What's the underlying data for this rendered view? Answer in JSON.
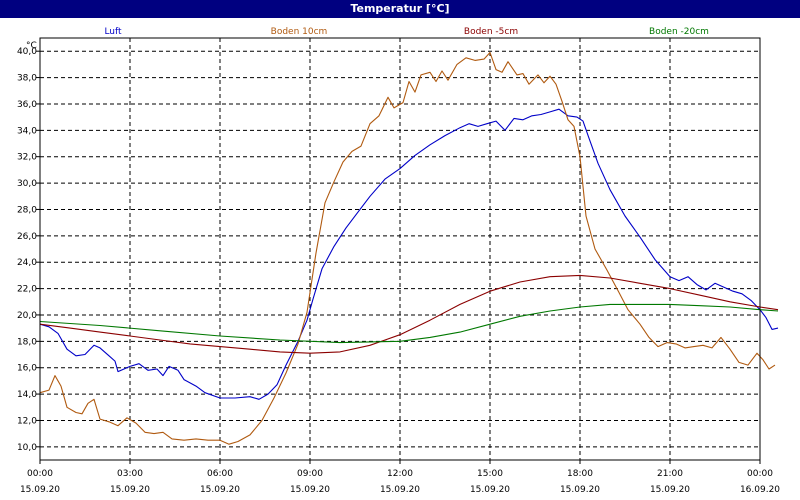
{
  "title": "Temperatur [°C]",
  "chart_data": {
    "type": "line",
    "ylabel": "°C",
    "ylim": [
      9.0,
      41.0
    ],
    "y_ticks": [
      "10,0",
      "12,0",
      "14,0",
      "16,0",
      "18,0",
      "20,0",
      "22,0",
      "24,0",
      "26,0",
      "28,0",
      "30,0",
      "32,0",
      "34,0",
      "36,0",
      "38,0",
      "40,0"
    ],
    "xlim": [
      0,
      24
    ],
    "x_ticks": [
      {
        "time": "00:00",
        "date": "15.09.20"
      },
      {
        "time": "03:00",
        "date": "15.09.20"
      },
      {
        "time": "06:00",
        "date": "15.09.20"
      },
      {
        "time": "09:00",
        "date": "15.09.20"
      },
      {
        "time": "12:00",
        "date": "15.09.20"
      },
      {
        "time": "15:00",
        "date": "15.09.20"
      },
      {
        "time": "18:00",
        "date": "15.09.20"
      },
      {
        "time": "21:00",
        "date": "15.09.20"
      },
      {
        "time": "00:00",
        "date": "16.09.20"
      }
    ],
    "grid": true,
    "legend_position": "top",
    "series": [
      {
        "name": "Luft",
        "color": "#0000c8",
        "points": [
          [
            0,
            19.3
          ],
          [
            0.3,
            19.1
          ],
          [
            0.6,
            18.6
          ],
          [
            0.9,
            17.4
          ],
          [
            1.2,
            16.9
          ],
          [
            1.5,
            17.0
          ],
          [
            1.8,
            17.7
          ],
          [
            2.0,
            17.5
          ],
          [
            2.3,
            16.9
          ],
          [
            2.5,
            16.5
          ],
          [
            2.6,
            15.7
          ],
          [
            3.0,
            16.1
          ],
          [
            3.3,
            16.3
          ],
          [
            3.6,
            15.8
          ],
          [
            3.9,
            15.9
          ],
          [
            4.1,
            15.4
          ],
          [
            4.3,
            16.1
          ],
          [
            4.6,
            15.8
          ],
          [
            4.8,
            15.1
          ],
          [
            5.2,
            14.6
          ],
          [
            5.5,
            14.1
          ],
          [
            6.0,
            13.7
          ],
          [
            6.5,
            13.7
          ],
          [
            7.0,
            13.8
          ],
          [
            7.3,
            13.6
          ],
          [
            7.6,
            14.0
          ],
          [
            7.9,
            14.7
          ],
          [
            8.2,
            16.2
          ],
          [
            8.6,
            18.0
          ],
          [
            8.9,
            19.6
          ],
          [
            9.1,
            21.2
          ],
          [
            9.4,
            23.5
          ],
          [
            9.8,
            25.2
          ],
          [
            10.2,
            26.6
          ],
          [
            10.6,
            27.8
          ],
          [
            11.0,
            29.0
          ],
          [
            11.5,
            30.3
          ],
          [
            12.0,
            31.1
          ],
          [
            12.5,
            32.1
          ],
          [
            13.0,
            32.9
          ],
          [
            13.5,
            33.6
          ],
          [
            14.0,
            34.2
          ],
          [
            14.3,
            34.5
          ],
          [
            14.6,
            34.3
          ],
          [
            14.9,
            34.5
          ],
          [
            15.2,
            34.7
          ],
          [
            15.5,
            34.0
          ],
          [
            15.8,
            34.9
          ],
          [
            16.1,
            34.8
          ],
          [
            16.4,
            35.1
          ],
          [
            16.7,
            35.2
          ],
          [
            17.0,
            35.4
          ],
          [
            17.3,
            35.6
          ],
          [
            17.6,
            35.1
          ],
          [
            17.9,
            35.0
          ],
          [
            18.1,
            34.7
          ],
          [
            18.3,
            33.4
          ],
          [
            18.6,
            31.5
          ],
          [
            19.0,
            29.5
          ],
          [
            19.5,
            27.5
          ],
          [
            20.0,
            25.9
          ],
          [
            20.5,
            24.2
          ],
          [
            21.0,
            22.9
          ],
          [
            21.3,
            22.6
          ],
          [
            21.6,
            22.9
          ],
          [
            21.9,
            22.3
          ],
          [
            22.2,
            21.9
          ],
          [
            22.5,
            22.4
          ],
          [
            22.8,
            22.1
          ],
          [
            23.1,
            21.8
          ],
          [
            23.4,
            21.6
          ],
          [
            23.7,
            21.1
          ],
          [
            24.0,
            20.4
          ],
          [
            24.2,
            19.8
          ],
          [
            24.4,
            18.9
          ],
          [
            24.6,
            19.0
          ]
        ]
      },
      {
        "name": "Boden 10cm",
        "color": "#b05a10",
        "points": [
          [
            0,
            14.1
          ],
          [
            0.3,
            14.3
          ],
          [
            0.5,
            15.4
          ],
          [
            0.7,
            14.6
          ],
          [
            0.9,
            13.0
          ],
          [
            1.2,
            12.6
          ],
          [
            1.4,
            12.5
          ],
          [
            1.6,
            13.3
          ],
          [
            1.8,
            13.6
          ],
          [
            2.0,
            12.1
          ],
          [
            2.3,
            11.9
          ],
          [
            2.6,
            11.6
          ],
          [
            2.9,
            12.2
          ],
          [
            3.2,
            11.8
          ],
          [
            3.5,
            11.1
          ],
          [
            3.8,
            11.0
          ],
          [
            4.1,
            11.1
          ],
          [
            4.4,
            10.6
          ],
          [
            4.8,
            10.5
          ],
          [
            5.2,
            10.6
          ],
          [
            5.6,
            10.5
          ],
          [
            6.0,
            10.5
          ],
          [
            6.3,
            10.2
          ],
          [
            6.6,
            10.4
          ],
          [
            7.0,
            10.9
          ],
          [
            7.4,
            12.0
          ],
          [
            7.8,
            13.7
          ],
          [
            8.2,
            15.6
          ],
          [
            8.6,
            17.8
          ],
          [
            8.9,
            20.2
          ],
          [
            9.2,
            24.7
          ],
          [
            9.5,
            28.5
          ],
          [
            9.8,
            30.1
          ],
          [
            10.1,
            31.6
          ],
          [
            10.4,
            32.4
          ],
          [
            10.7,
            32.8
          ],
          [
            11.0,
            34.5
          ],
          [
            11.3,
            35.1
          ],
          [
            11.6,
            36.5
          ],
          [
            11.8,
            35.7
          ],
          [
            12.1,
            36.1
          ],
          [
            12.3,
            37.7
          ],
          [
            12.5,
            36.9
          ],
          [
            12.7,
            38.2
          ],
          [
            13.0,
            38.4
          ],
          [
            13.2,
            37.7
          ],
          [
            13.4,
            38.5
          ],
          [
            13.6,
            37.8
          ],
          [
            13.9,
            39.0
          ],
          [
            14.2,
            39.5
          ],
          [
            14.5,
            39.3
          ],
          [
            14.8,
            39.4
          ],
          [
            15.0,
            39.9
          ],
          [
            15.2,
            38.6
          ],
          [
            15.4,
            38.4
          ],
          [
            15.6,
            39.2
          ],
          [
            15.9,
            38.2
          ],
          [
            16.1,
            38.3
          ],
          [
            16.3,
            37.5
          ],
          [
            16.6,
            38.2
          ],
          [
            16.8,
            37.6
          ],
          [
            17.0,
            38.1
          ],
          [
            17.2,
            37.5
          ],
          [
            17.4,
            36.2
          ],
          [
            17.6,
            34.8
          ],
          [
            17.8,
            34.3
          ],
          [
            18.0,
            32.0
          ],
          [
            18.2,
            27.5
          ],
          [
            18.5,
            25.0
          ],
          [
            18.9,
            23.4
          ],
          [
            19.3,
            21.7
          ],
          [
            19.6,
            20.4
          ],
          [
            20.0,
            19.3
          ],
          [
            20.3,
            18.3
          ],
          [
            20.6,
            17.6
          ],
          [
            20.9,
            17.9
          ],
          [
            21.2,
            17.8
          ],
          [
            21.5,
            17.5
          ],
          [
            21.8,
            17.6
          ],
          [
            22.1,
            17.7
          ],
          [
            22.4,
            17.5
          ],
          [
            22.7,
            18.3
          ],
          [
            23.0,
            17.4
          ],
          [
            23.3,
            16.4
          ],
          [
            23.6,
            16.2
          ],
          [
            23.9,
            17.1
          ],
          [
            24.1,
            16.6
          ],
          [
            24.3,
            15.9
          ],
          [
            24.5,
            16.2
          ]
        ]
      },
      {
        "name": "Boden -5cm",
        "color": "#8b0000",
        "points": [
          [
            0,
            19.3
          ],
          [
            1,
            19.0
          ],
          [
            2,
            18.7
          ],
          [
            3,
            18.4
          ],
          [
            4,
            18.1
          ],
          [
            5,
            17.8
          ],
          [
            6,
            17.6
          ],
          [
            7,
            17.4
          ],
          [
            8,
            17.2
          ],
          [
            9,
            17.1
          ],
          [
            10,
            17.2
          ],
          [
            11,
            17.7
          ],
          [
            12,
            18.5
          ],
          [
            13,
            19.6
          ],
          [
            14,
            20.8
          ],
          [
            15,
            21.8
          ],
          [
            16,
            22.5
          ],
          [
            17,
            22.9
          ],
          [
            18,
            23.0
          ],
          [
            19,
            22.8
          ],
          [
            20,
            22.4
          ],
          [
            21,
            22.0
          ],
          [
            22,
            21.5
          ],
          [
            23,
            21.0
          ],
          [
            24,
            20.6
          ],
          [
            24.6,
            20.4
          ]
        ]
      },
      {
        "name": "Boden -20cm",
        "color": "#007800",
        "points": [
          [
            0,
            19.5
          ],
          [
            2,
            19.2
          ],
          [
            4,
            18.8
          ],
          [
            6,
            18.4
          ],
          [
            8,
            18.1
          ],
          [
            10,
            17.9
          ],
          [
            12,
            18.0
          ],
          [
            13,
            18.3
          ],
          [
            14,
            18.7
          ],
          [
            15,
            19.3
          ],
          [
            16,
            19.9
          ],
          [
            17,
            20.3
          ],
          [
            18,
            20.6
          ],
          [
            19,
            20.8
          ],
          [
            20,
            20.8
          ],
          [
            21,
            20.8
          ],
          [
            22,
            20.7
          ],
          [
            23,
            20.6
          ],
          [
            24,
            20.4
          ],
          [
            24.6,
            20.3
          ]
        ]
      }
    ]
  }
}
